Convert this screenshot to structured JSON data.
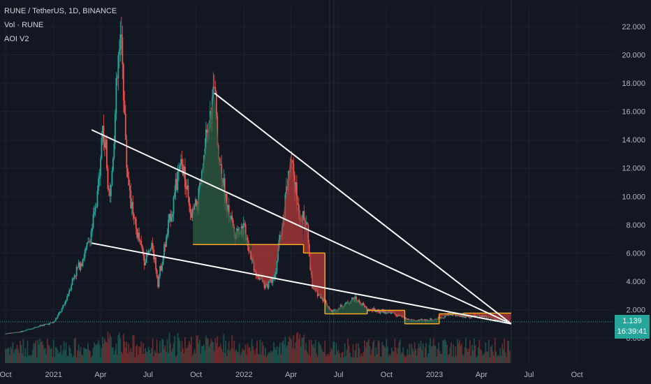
{
  "legend": {
    "symbol": "RUNE / TetherUS, 1D, BINANCE",
    "volume": "Vol · RUNE",
    "indicator": "AOI V2"
  },
  "last_price": {
    "value": "1.139",
    "countdown": "16:39:41"
  },
  "colors": {
    "background": "#131722",
    "up": "#26a69a",
    "down": "#ef5350",
    "trendline": "#ffffff",
    "aoi_line": "#f5a623",
    "aoi_fill_up": "#2e5e42",
    "aoi_fill_down": "#b23a3a",
    "grid": "#1e222d",
    "axis_text": "#b2b5be"
  },
  "chart_data": {
    "type": "candlestick",
    "y_axis": {
      "ticks": [
        "22.000",
        "20.000",
        "18.000",
        "16.000",
        "14.000",
        "12.000",
        "10.000",
        "8.000",
        "6.000",
        "4.000",
        "2.000",
        "0.000"
      ],
      "range": [
        0,
        22
      ],
      "side": "right"
    },
    "x_axis": {
      "ticks": [
        "Oct",
        "2021",
        "Apr",
        "Jul",
        "Oct",
        "2022",
        "Apr",
        "Jul",
        "Oct",
        "2023",
        "Apr",
        "Jul",
        "Oct"
      ],
      "range": [
        "2020-10-01",
        "2023-10-01"
      ]
    },
    "close_series": [
      [
        "2020-10-01",
        0.3
      ],
      [
        "2020-11-01",
        0.45
      ],
      [
        "2020-12-01",
        0.8
      ],
      [
        "2021-01-01",
        1.1
      ],
      [
        "2021-01-20",
        2.2
      ],
      [
        "2021-02-10",
        4.5
      ],
      [
        "2021-02-28",
        5.8
      ],
      [
        "2021-03-10",
        6.8
      ],
      [
        "2021-03-25",
        9.5
      ],
      [
        "2021-04-05",
        15.0
      ],
      [
        "2021-04-20",
        10.0
      ],
      [
        "2021-05-05",
        19.5
      ],
      [
        "2021-05-12",
        21.2
      ],
      [
        "2021-05-20",
        12.5
      ],
      [
        "2021-06-05",
        8.0
      ],
      [
        "2021-06-25",
        5.5
      ],
      [
        "2021-07-10",
        6.5
      ],
      [
        "2021-07-20",
        4.0
      ],
      [
        "2021-08-05",
        7.0
      ],
      [
        "2021-08-25",
        11.0
      ],
      [
        "2021-09-05",
        12.3
      ],
      [
        "2021-09-20",
        8.5
      ],
      [
        "2021-10-05",
        9.5
      ],
      [
        "2021-10-25",
        15.0
      ],
      [
        "2021-11-05",
        17.4
      ],
      [
        "2021-11-15",
        12.5
      ],
      [
        "2021-12-01",
        9.0
      ],
      [
        "2021-12-15",
        7.5
      ],
      [
        "2022-01-01",
        7.8
      ],
      [
        "2022-01-20",
        5.0
      ],
      [
        "2022-02-10",
        3.7
      ],
      [
        "2022-03-01",
        4.5
      ],
      [
        "2022-03-15",
        8.0
      ],
      [
        "2022-04-01",
        13.1
      ],
      [
        "2022-04-15",
        9.0
      ],
      [
        "2022-05-01",
        8.0
      ],
      [
        "2022-05-12",
        3.5
      ],
      [
        "2022-06-01",
        2.8
      ],
      [
        "2022-06-18",
        1.8
      ],
      [
        "2022-07-10",
        2.3
      ],
      [
        "2022-08-01",
        2.8
      ],
      [
        "2022-08-25",
        2.0
      ],
      [
        "2022-09-15",
        1.9
      ],
      [
        "2022-10-10",
        1.8
      ],
      [
        "2022-11-10",
        1.3
      ],
      [
        "2022-12-01",
        1.2
      ],
      [
        "2023-01-01",
        1.3
      ],
      [
        "2023-02-01",
        1.7
      ],
      [
        "2023-03-01",
        1.5
      ],
      [
        "2023-04-01",
        1.6
      ],
      [
        "2023-05-01",
        1.3
      ],
      [
        "2023-05-25",
        1.139
      ]
    ],
    "aoi_levels": [
      {
        "start": "2021-09-25",
        "end": "2022-01-15",
        "level": 6.6
      },
      {
        "start": "2022-01-15",
        "end": "2022-04-25",
        "level": 6.6
      },
      {
        "start": "2022-04-25",
        "end": "2022-06-05",
        "level": 6.0
      },
      {
        "start": "2022-06-05",
        "end": "2022-08-25",
        "level": 1.7
      },
      {
        "start": "2022-08-25",
        "end": "2022-11-05",
        "level": 1.95
      },
      {
        "start": "2022-11-05",
        "end": "2023-01-10",
        "level": 1.0
      },
      {
        "start": "2023-01-10",
        "end": "2023-02-25",
        "level": 1.7
      },
      {
        "start": "2023-02-25",
        "end": "2023-05-28",
        "level": 1.75
      }
    ],
    "trendlines": [
      {
        "from": [
          "2021-03-15",
          6.7
        ],
        "to": [
          "2023-05-28",
          1.0
        ]
      },
      {
        "from": [
          "2021-03-15",
          14.7
        ],
        "to": [
          "2023-05-28",
          1.0
        ]
      },
      {
        "from": [
          "2021-11-05",
          17.3
        ],
        "to": [
          "2023-05-28",
          1.0
        ]
      }
    ],
    "last_price": 1.139
  }
}
